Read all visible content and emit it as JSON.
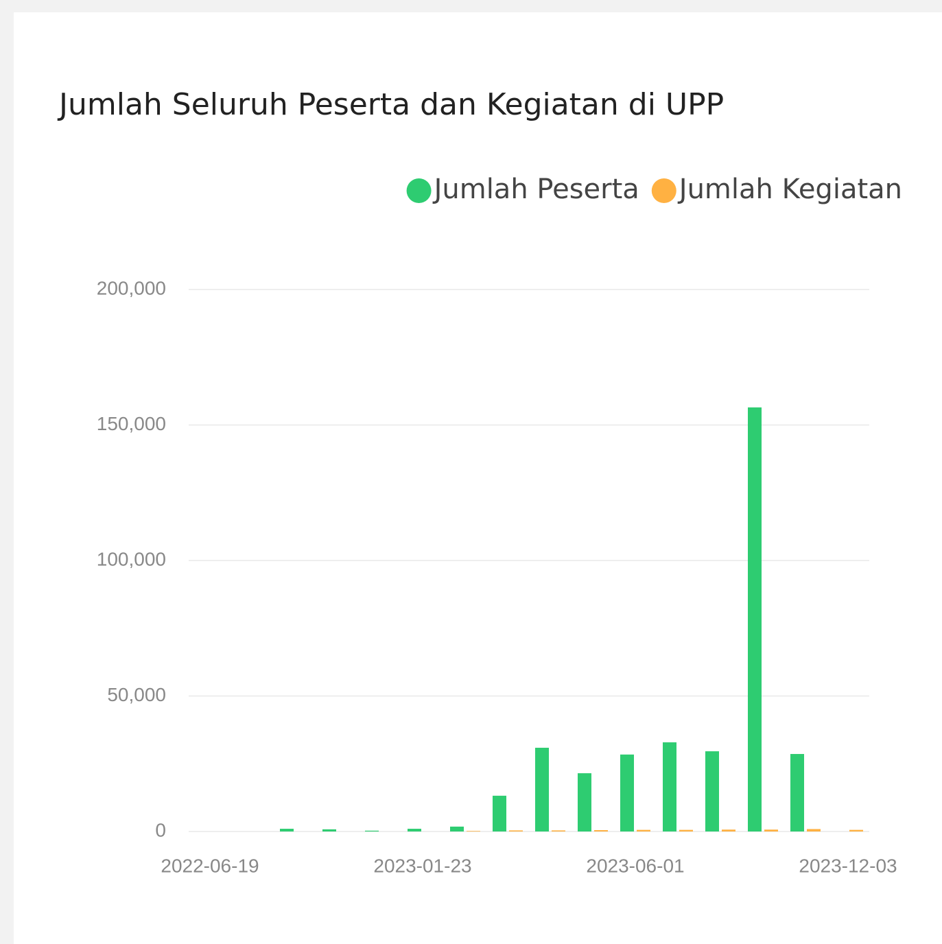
{
  "chart_data": {
    "type": "bar",
    "title": "Jumlah Seluruh Peserta dan Kegiatan di UPP",
    "categories": [
      "2022-06-19",
      null,
      null,
      null,
      null,
      "2023-01-23",
      null,
      null,
      null,
      null,
      "2023-06-01",
      null,
      null,
      null,
      null,
      "2023-12-03"
    ],
    "series": [
      {
        "name": "Jumlah Peserta",
        "color": "#2ecc71",
        "values": [
          0,
          0,
          1000,
          800,
          300,
          1000,
          1800,
          13200,
          30900,
          21500,
          28400,
          32900,
          29600,
          156500,
          28600,
          0
        ]
      },
      {
        "name": "Jumlah Kegiatan",
        "color": "#ffb142",
        "values": [
          0,
          0,
          0,
          0,
          0,
          0,
          200,
          400,
          400,
          500,
          600,
          600,
          700,
          700,
          900,
          600
        ]
      }
    ],
    "ylim": [
      0,
      200000
    ],
    "yticks": [
      0,
      {
        "value": 50000,
        "label": "50,000"
      },
      {
        "value": 100000,
        "label": "100,000"
      },
      {
        "value": 150000,
        "label": "150,000"
      },
      {
        "value": 200000,
        "label": "200,000"
      }
    ],
    "grid": true,
    "legend": "top-right"
  }
}
